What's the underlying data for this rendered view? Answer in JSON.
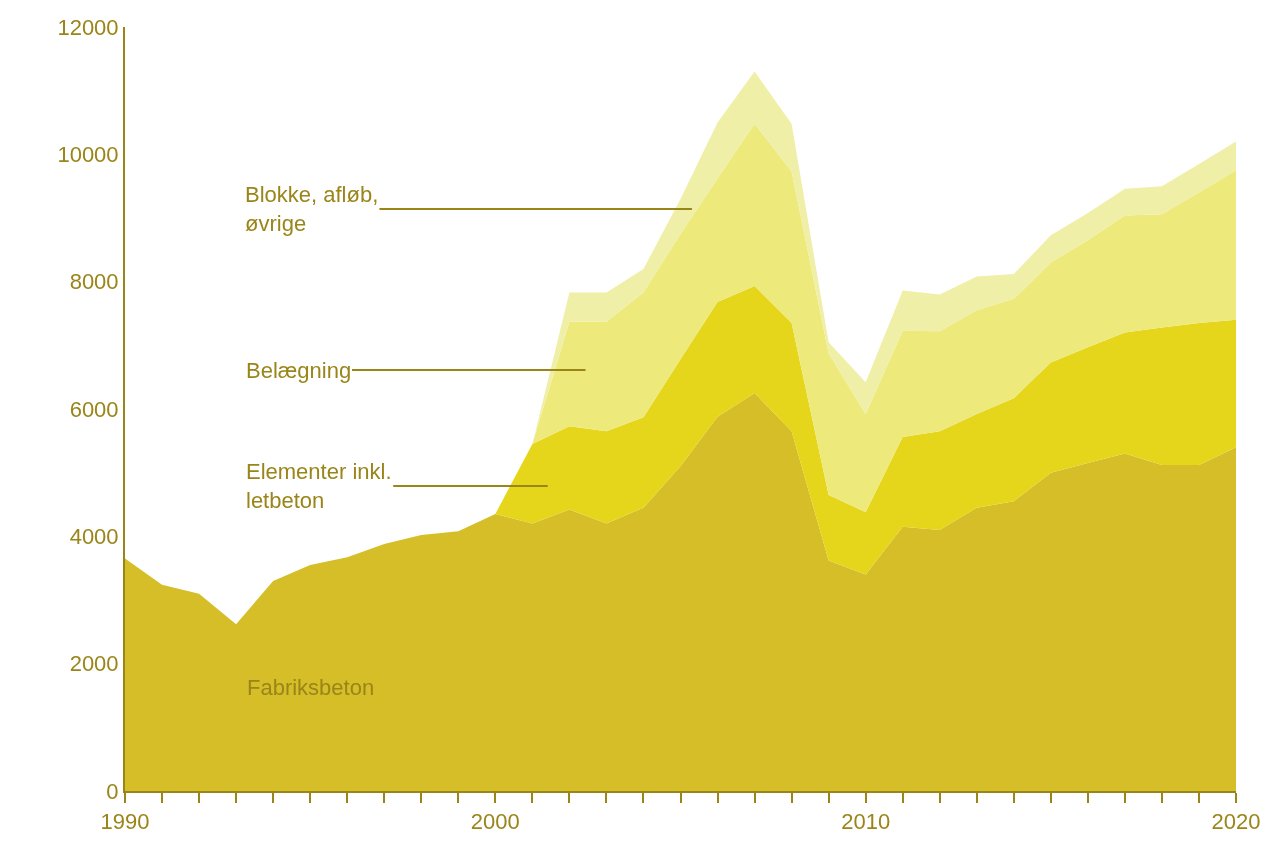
{
  "chart_data": {
    "type": "area",
    "stacked": true,
    "x": [
      1990,
      1991,
      1992,
      1993,
      1994,
      1995,
      1996,
      1997,
      1998,
      1999,
      2000,
      2001,
      2002,
      2003,
      2004,
      2005,
      2006,
      2007,
      2008,
      2009,
      2010,
      2011,
      2012,
      2013,
      2014,
      2015,
      2016,
      2017,
      2018,
      2019,
      2020
    ],
    "series": [
      {
        "color": "#d6be28",
        "values": [
          3650,
          3240,
          3100,
          2620,
          3300,
          3550,
          3670,
          3880,
          4020,
          4080,
          4350,
          4200,
          4420,
          4200,
          4450,
          5100,
          5880,
          6250,
          5650,
          3620,
          3400,
          4150,
          4100,
          4450,
          4550,
          5000,
          5150,
          5300,
          5120,
          5120,
          5400
        ]
      },
      {
        "color": "#e5d61c",
        "values": [
          null,
          null,
          null,
          null,
          null,
          null,
          null,
          null,
          null,
          null,
          0,
          1250,
          1310,
          1450,
          1420,
          1680,
          1800,
          1680,
          1700,
          1030,
          980,
          1410,
          1550,
          1470,
          1620,
          1730,
          1820,
          1900,
          2160,
          2230,
          2000
        ]
      },
      {
        "color": "#ede97a",
        "values": [
          null,
          null,
          null,
          null,
          null,
          null,
          null,
          null,
          null,
          null,
          null,
          0,
          1640,
          1720,
          1960,
          1970,
          1940,
          2550,
          2380,
          2220,
          1540,
          1670,
          1570,
          1630,
          1560,
          1570,
          1680,
          1840,
          1780,
          2050,
          2350
        ]
      },
      {
        "color": "#f0efa8",
        "values": [
          null,
          null,
          null,
          null,
          null,
          null,
          null,
          null,
          null,
          null,
          null,
          0,
          460,
          460,
          370,
          550,
          880,
          820,
          750,
          180,
          500,
          630,
          580,
          530,
          390,
          430,
          430,
          420,
          440,
          450,
          450
        ]
      }
    ],
    "annotations": [
      "Blokke, afløb,\nøvrige",
      "Belægning",
      "Elementer inkl.\nletbeton",
      "Fabriksbeton"
    ],
    "xlim": [
      1990,
      2020
    ],
    "ylim": [
      0,
      12000
    ],
    "xticks": [
      1990,
      {
        "value": 1991,
        "label": null
      },
      {
        "value": 1992,
        "label": null
      },
      {
        "value": 1993,
        "label": null
      },
      {
        "value": 1994,
        "label": null
      },
      {
        "value": 1995,
        "label": null
      },
      {
        "value": 1996,
        "label": null
      },
      {
        "value": 1997,
        "label": null
      },
      {
        "value": 1998,
        "label": null
      },
      {
        "value": 1999,
        "label": null
      },
      2000,
      {
        "value": 2001,
        "label": null
      },
      {
        "value": 2002,
        "label": null
      },
      {
        "value": 2003,
        "label": null
      },
      {
        "value": 2004,
        "label": null
      },
      {
        "value": 2005,
        "label": null
      },
      {
        "value": 2006,
        "label": null
      },
      {
        "value": 2007,
        "label": null
      },
      {
        "value": 2008,
        "label": null
      },
      {
        "value": 2009,
        "label": null
      },
      2010,
      {
        "value": 2011,
        "label": null
      },
      {
        "value": 2012,
        "label": null
      },
      {
        "value": 2013,
        "label": null
      },
      {
        "value": 2014,
        "label": null
      },
      {
        "value": 2015,
        "label": null
      },
      {
        "value": 2016,
        "label": null
      },
      {
        "value": 2017,
        "label": null
      },
      {
        "value": 2018,
        "label": null
      },
      {
        "value": 2019,
        "label": null
      },
      2020
    ],
    "yticks": [
      0,
      2000,
      4000,
      6000,
      8000,
      10000,
      12000
    ]
  }
}
